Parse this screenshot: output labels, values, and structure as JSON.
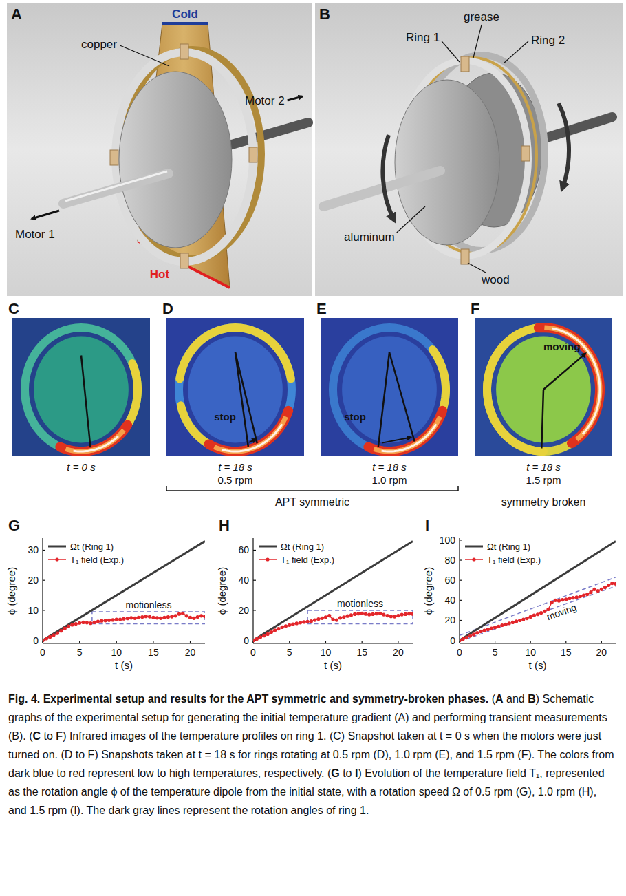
{
  "figure": {
    "panels_schematic": [
      {
        "letter": "A",
        "labels": {
          "top_edge": "Cold",
          "plate": "copper",
          "bottom_edge": "Hot",
          "left_shaft": "Motor 1",
          "right_shaft": "Motor 2"
        }
      },
      {
        "letter": "B",
        "labels": {
          "grease": "grease",
          "ring1": "Ring 1",
          "ring2": "Ring 2",
          "disk": "aluminum",
          "support": "wood"
        }
      }
    ],
    "snapshots": [
      {
        "letter": "C",
        "time": "t = 0 s"
      },
      {
        "letter": "D",
        "time": "t = 18 s",
        "speed": "0.5 rpm",
        "annotation": "stop"
      },
      {
        "letter": "E",
        "time": "t = 18 s",
        "speed": "1.0 rpm",
        "annotation": "stop"
      },
      {
        "letter": "F",
        "time": "t = 18 s",
        "speed": "1.5 rpm",
        "annotation": "moving"
      }
    ],
    "groups": [
      {
        "label": "APT symmetric",
        "panels": [
          "D",
          "E"
        ]
      },
      {
        "label": "symmetry broken",
        "panels": [
          "F"
        ]
      }
    ]
  },
  "chart_data": [
    {
      "type": "line",
      "title": "G",
      "xlabel": "t (s)",
      "ylabel": "ϕ (degree)",
      "xlim": [
        0,
        22
      ],
      "ylim": [
        -1,
        34
      ],
      "xticks": [
        0,
        5,
        10,
        15,
        20
      ],
      "yticks": [
        0,
        10,
        20,
        30
      ],
      "legend": "upper left",
      "series": [
        {
          "name": "Ωt (Ring 1)",
          "color": "#3c3c3c",
          "x": [
            0,
            22
          ],
          "values": [
            0,
            33
          ]
        },
        {
          "name": "T₁ field (Exp.)",
          "color": "#e3262b",
          "marker": "circle",
          "x": [
            0,
            0.5,
            1,
            1.5,
            2,
            2.5,
            3,
            3.5,
            4,
            4.5,
            5,
            5.5,
            6,
            6.5,
            7,
            7.5,
            8,
            8.5,
            9,
            9.5,
            10,
            10.5,
            11,
            11.5,
            12,
            12.5,
            13,
            13.5,
            14,
            14.5,
            15,
            15.5,
            16,
            16.5,
            17,
            17.5,
            18,
            18.5,
            19,
            19.5,
            20,
            20.5,
            21,
            21.5,
            22
          ],
          "values": [
            0,
            0.6,
            1.2,
            1.8,
            2.4,
            3.2,
            4.0,
            4.7,
            5.2,
            5.5,
            5.8,
            6.0,
            5.9,
            5.7,
            6.0,
            6.3,
            6.5,
            6.6,
            6.7,
            6.8,
            7.0,
            7.0,
            7.2,
            7.3,
            7.5,
            7.4,
            7.6,
            7.8,
            8.0,
            7.9,
            7.6,
            7.5,
            7.4,
            7.6,
            7.8,
            7.9,
            8.2,
            8.8,
            9.0,
            8.2,
            7.6,
            7.4,
            7.8,
            8.2,
            8.0
          ]
        }
      ],
      "annotation_box": {
        "label": "motionless",
        "x": [
          6.7,
          22
        ],
        "y": [
          5.5,
          9.5
        ],
        "color": "#7a7cc8",
        "line_style": "dashed"
      }
    },
    {
      "type": "line",
      "title": "H",
      "xlabel": "t (s)",
      "ylabel": "ϕ (degree)",
      "xlim": [
        0,
        22
      ],
      "ylim": [
        -2,
        68
      ],
      "xticks": [
        0,
        5,
        10,
        15,
        20
      ],
      "yticks": [
        0,
        20,
        40,
        60
      ],
      "legend": "upper left",
      "series": [
        {
          "name": "Ωt (Ring 1)",
          "color": "#3c3c3c",
          "x": [
            0,
            22
          ],
          "values": [
            0,
            66
          ]
        },
        {
          "name": "T₁ field (Exp.)",
          "color": "#e3262b",
          "marker": "circle",
          "x": [
            0,
            0.5,
            1,
            1.5,
            2,
            2.5,
            3,
            3.5,
            4,
            4.5,
            5,
            5.5,
            6,
            6.5,
            7,
            7.5,
            8,
            8.5,
            9,
            9.5,
            10,
            10.5,
            11,
            11.5,
            12,
            12.5,
            13,
            13.5,
            14,
            14.5,
            15,
            15.5,
            16,
            16.5,
            17,
            17.5,
            18,
            18.5,
            19,
            19.5,
            20,
            20.5,
            21,
            21.5,
            22
          ],
          "values": [
            0,
            1.0,
            2.2,
            3.2,
            4.2,
            5.5,
            6.8,
            7.8,
            8.8,
            9.5,
            10.2,
            10.8,
            11.3,
            11.8,
            12.2,
            12.5,
            12.8,
            13.5,
            14.2,
            14.8,
            15.5,
            16.5,
            14.0,
            13.5,
            15.0,
            15.5,
            16.2,
            16.8,
            17.5,
            17.8,
            18.0,
            17.6,
            17.2,
            17.5,
            17.8,
            18.0,
            17.2,
            16.5,
            16.0,
            15.8,
            16.5,
            17.2,
            17.5,
            17.8,
            17.6
          ]
        }
      ],
      "annotation_box": {
        "label": "motionless",
        "x": [
          7.5,
          22
        ],
        "y": [
          11,
          20
        ],
        "color": "#7a7cc8",
        "line_style": "dashed"
      }
    },
    {
      "type": "line",
      "title": "I",
      "xlabel": "t (s)",
      "ylabel": "ϕ (degree)",
      "xlim": [
        0,
        22
      ],
      "ylim": [
        -3,
        102
      ],
      "xticks": [
        0,
        5,
        10,
        15,
        20
      ],
      "yticks": [
        0,
        20,
        40,
        60,
        80,
        100
      ],
      "legend": "upper left",
      "series": [
        {
          "name": "Ωt (Ring 1)",
          "color": "#3c3c3c",
          "x": [
            0,
            22
          ],
          "values": [
            0,
            99
          ]
        },
        {
          "name": "T₁ field (Exp.)",
          "color": "#e3262b",
          "marker": "circle",
          "x": [
            0,
            0.5,
            1,
            1.5,
            2,
            2.5,
            3,
            3.5,
            4,
            4.5,
            5,
            5.5,
            6,
            6.5,
            7,
            7.5,
            8,
            8.5,
            9,
            9.5,
            10,
            10.5,
            11,
            11.5,
            12,
            12.5,
            13,
            13.5,
            14,
            14.5,
            15,
            15.5,
            16,
            16.5,
            17,
            17.5,
            18,
            18.5,
            19,
            19.5,
            20,
            20.5,
            21,
            21.5,
            22
          ],
          "values": [
            0,
            1.5,
            3.0,
            4.5,
            6.0,
            7.5,
            9.0,
            10.0,
            11.0,
            12.0,
            13.0,
            14.0,
            15.2,
            16.0,
            17.0,
            18.0,
            19.0,
            20.0,
            21.0,
            22.0,
            23.5,
            25.0,
            26.0,
            27.5,
            29.0,
            31.0,
            38.0,
            40.0,
            39.5,
            40.5,
            41.0,
            42.0,
            42.5,
            43.0,
            44.0,
            45.0,
            46.0,
            48.0,
            51.0,
            49.5,
            51.0,
            53.0,
            55.0,
            57.0,
            56.5
          ]
        }
      ],
      "annotation_band": {
        "label": "moving",
        "color": "#7a7cc8",
        "line_style": "dashed",
        "lines": [
          {
            "x": [
              0,
              22
            ],
            "y": [
              5,
              63
            ]
          },
          {
            "x": [
              0,
              22
            ],
            "y": [
              -1,
              54
            ]
          }
        ]
      }
    }
  ],
  "caption": [
    "Fig. 4. Experimental setup and results for the APT symmetric and symmetry-broken phases.",
    " (",
    "A",
    " and ",
    "B",
    ") Schematic graphs of the experimental setup for generating the initial temperature gradient (A) and performing transient measurements (B). (",
    "C",
    " to ",
    "F",
    ") Infrared images of the temperature profiles on ring 1. (C) Snapshot taken at t = 0 s when the motors were just turned on. (D to F) Snapshots taken at t = 18 s for rings rotating at 0.5 rpm (D), 1.0 rpm (E), and 1.5 rpm (F). The colors from dark blue to red represent low to high temperatures, respectively. (",
    "G",
    " to ",
    "I",
    ") Evolution of the temperature field T₁, represented as the rotation angle ϕ of the temperature dipole from the initial state, with a rotation speed Ω of 0.5 rpm (G), 1.0 rpm (H), and 1.5 rpm (I). The dark gray lines represent the rotation angles of ring 1."
  ]
}
